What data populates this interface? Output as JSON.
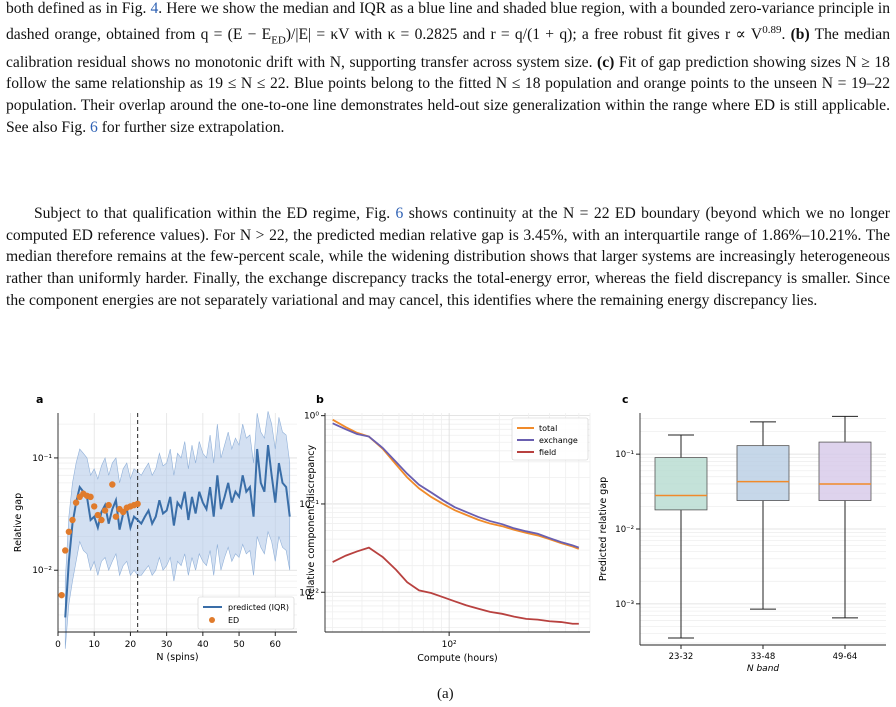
{
  "paragraphs": {
    "p1": {
      "t1": "both defined as in Fig. ",
      "fig4": "4",
      "t2": ". Here we show the median and IQR as a blue line and shaded blue region, with a bounded zero-variance principle in dashed orange, obtained from q = (E − E",
      "sub_ed": "ED",
      "t3": ")/|E| = κV with κ = 0.2825 and r = q/(1 + q); a free robust fit gives r ∝ V",
      "sup_exp": "0.89",
      "t4": ". ",
      "b_label": "(b)",
      "t5": " The median calibration residual shows no monotonic drift with N, supporting transfer across system size. ",
      "c_label": "(c)",
      "t6": " Fit of gap prediction showing sizes N ≥ 18 follow the same relationship as 19 ≤ N ≤ 22. Blue points belong to the fitted N ≤ 18 population and orange points to the unseen N = 19–22 population. Their overlap around the one-to-one line demonstrates held-out size generalization within the range where ED is still applicable. See also Fig. ",
      "fig6": "6",
      "t7": " for further size extrapolation."
    },
    "p2": {
      "t1": "Subject to that qualification within the ED regime, Fig. ",
      "fig6": "6",
      "t2": " shows continuity at the N = 22 ED boundary (beyond which we no longer computed ED reference values). For N > 22, the predicted median relative gap is 3.45%, with an interquartile range of 1.86%–10.21%. The median therefore remains at the few-percent scale, while the widening distribution shows that larger systems are increasingly heterogeneous rather than uniformly harder. Finally, the exchange discrepancy tracks the total-energy error, whereas the field discrepancy is smaller. Since the component energies are not separately variational and may cancel, this identifies where the remaining energy discrepancy lies."
    }
  },
  "panel_labels": [
    "a",
    "b",
    "c"
  ],
  "caption_label": "(a)",
  "chart_data": [
    {
      "type": "line",
      "panel": "a",
      "xlabel": "N (spins)",
      "ylabel": "Relative gap",
      "xlim": [
        0,
        66
      ],
      "ylim_log10": [
        -2.55,
        -0.6
      ],
      "yscale": "log",
      "xticks": [
        0,
        10,
        20,
        30,
        40,
        50,
        60
      ],
      "yticks": [
        "10⁻²",
        "10⁻¹"
      ],
      "vline_x": 22,
      "legend": [
        "predicted (IQR)",
        "ED"
      ],
      "legend_position": "lower-right",
      "colors": {
        "predicted": "#3a6ea8",
        "band": "#aec6e8",
        "ed": "#e07b2c"
      },
      "predicted": {
        "x": [
          2,
          3,
          4,
          5,
          6,
          7,
          8,
          9,
          10,
          11,
          12,
          13,
          14,
          15,
          16,
          17,
          18,
          19,
          20,
          21,
          22,
          23,
          24,
          25,
          26,
          27,
          28,
          29,
          30,
          31,
          32,
          33,
          34,
          35,
          36,
          37,
          38,
          39,
          40,
          41,
          42,
          43,
          44,
          45,
          46,
          47,
          48,
          49,
          50,
          51,
          52,
          53,
          54,
          55,
          56,
          57,
          58,
          59,
          60,
          61,
          62,
          63,
          64
        ],
        "median": [
          0.0038,
          0.012,
          0.026,
          0.04,
          0.055,
          0.05,
          0.045,
          0.028,
          0.03,
          0.024,
          0.033,
          0.038,
          0.026,
          0.035,
          0.042,
          0.023,
          0.032,
          0.035,
          0.024,
          0.03,
          0.028,
          0.026,
          0.03,
          0.034,
          0.026,
          0.03,
          0.042,
          0.032,
          0.034,
          0.045,
          0.025,
          0.04,
          0.036,
          0.05,
          0.028,
          0.045,
          0.032,
          0.05,
          0.04,
          0.035,
          0.055,
          0.03,
          0.07,
          0.035,
          0.045,
          0.06,
          0.04,
          0.05,
          0.045,
          0.07,
          0.05,
          0.055,
          0.03,
          0.12,
          0.06,
          0.05,
          0.13,
          0.07,
          0.04,
          0.09,
          0.06,
          0.055,
          0.03
        ],
        "q1": [
          0.002,
          0.005,
          0.008,
          0.012,
          0.018,
          0.015,
          0.014,
          0.01,
          0.012,
          0.009,
          0.012,
          0.013,
          0.01,
          0.012,
          0.014,
          0.009,
          0.011,
          0.012,
          0.009,
          0.01,
          0.009,
          0.009,
          0.01,
          0.011,
          0.009,
          0.01,
          0.013,
          0.01,
          0.011,
          0.013,
          0.008,
          0.012,
          0.011,
          0.014,
          0.009,
          0.013,
          0.01,
          0.014,
          0.012,
          0.011,
          0.015,
          0.009,
          0.017,
          0.01,
          0.013,
          0.016,
          0.012,
          0.014,
          0.013,
          0.017,
          0.014,
          0.015,
          0.009,
          0.02,
          0.016,
          0.014,
          0.022,
          0.018,
          0.012,
          0.02,
          0.016,
          0.015,
          0.01
        ],
        "q3": [
          0.008,
          0.03,
          0.06,
          0.09,
          0.12,
          0.11,
          0.1,
          0.07,
          0.08,
          0.065,
          0.085,
          0.1,
          0.07,
          0.09,
          0.1,
          0.06,
          0.08,
          0.09,
          0.065,
          0.08,
          0.075,
          0.07,
          0.08,
          0.09,
          0.07,
          0.08,
          0.11,
          0.085,
          0.09,
          0.12,
          0.07,
          0.11,
          0.1,
          0.14,
          0.08,
          0.13,
          0.09,
          0.14,
          0.11,
          0.1,
          0.16,
          0.09,
          0.2,
          0.1,
          0.13,
          0.17,
          0.12,
          0.15,
          0.13,
          0.2,
          0.15,
          0.16,
          0.09,
          0.25,
          0.17,
          0.15,
          0.26,
          0.2,
          0.12,
          0.23,
          0.17,
          0.16,
          0.09
        ]
      },
      "ed": {
        "x": [
          1,
          2,
          3,
          4,
          5,
          6,
          7,
          8,
          9,
          10,
          11,
          12,
          13,
          14,
          15,
          16,
          17,
          18,
          19,
          20,
          21,
          22
        ],
        "y": [
          0.006,
          0.015,
          0.022,
          0.028,
          0.04,
          0.045,
          0.048,
          0.046,
          0.045,
          0.037,
          0.031,
          0.028,
          0.034,
          0.038,
          0.058,
          0.03,
          0.035,
          0.033,
          0.036,
          0.037,
          0.038,
          0.039
        ]
      }
    },
    {
      "type": "line",
      "panel": "b",
      "xlabel": "Compute (hours)",
      "ylabel": "Relative component discrepancy",
      "xscale": "log",
      "yscale": "log",
      "xticks": [
        "10²"
      ],
      "yticks": [
        "10⁻²",
        "10⁻¹",
        "10⁰"
      ],
      "legend": [
        "total",
        "exchange",
        "field"
      ],
      "legend_position": "upper-right",
      "colors": {
        "total": "#f08a2a",
        "exchange": "#6a5fb0",
        "field": "#b8413f"
      },
      "x": [
        20,
        24,
        28,
        33,
        40,
        48,
        56,
        66,
        78,
        92,
        108,
        127,
        150,
        176,
        208,
        245,
        290,
        340,
        400,
        470,
        550,
        600
      ],
      "series": [
        {
          "name": "total",
          "values": [
            0.9,
            0.74,
            0.64,
            0.58,
            0.42,
            0.28,
            0.2,
            0.15,
            0.12,
            0.1,
            0.085,
            0.075,
            0.066,
            0.06,
            0.056,
            0.051,
            0.047,
            0.044,
            0.04,
            0.036,
            0.033,
            0.031
          ]
        },
        {
          "name": "exchange",
          "values": [
            0.82,
            0.7,
            0.62,
            0.58,
            0.43,
            0.3,
            0.22,
            0.165,
            0.135,
            0.11,
            0.092,
            0.081,
            0.071,
            0.064,
            0.059,
            0.053,
            0.049,
            0.046,
            0.041,
            0.037,
            0.034,
            0.032
          ]
        },
        {
          "name": "field",
          "values": [
            0.022,
            0.026,
            0.029,
            0.032,
            0.025,
            0.018,
            0.013,
            0.0105,
            0.0098,
            0.0088,
            0.0079,
            0.0071,
            0.0065,
            0.006,
            0.0057,
            0.0053,
            0.005,
            0.0049,
            0.0047,
            0.0046,
            0.0044,
            0.0044
          ]
        }
      ]
    },
    {
      "type": "box",
      "panel": "c",
      "xlabel": "N band",
      "ylabel": "Predicted relative gap",
      "yscale": "log",
      "yticks": [
        "10⁻³",
        "10⁻²",
        "10⁻¹"
      ],
      "categories": [
        "23-32",
        "33-48",
        "49-64"
      ],
      "colors": [
        "#b5dbd0",
        "#b8cde4",
        "#d6c8e8"
      ],
      "median_color": "#f08a2a",
      "boxes": [
        {
          "whisker_low": 0.00035,
          "q1": 0.018,
          "median": 0.028,
          "q3": 0.09,
          "whisker_high": 0.18
        },
        {
          "whisker_low": 0.00085,
          "q1": 0.024,
          "median": 0.043,
          "q3": 0.13,
          "whisker_high": 0.27
        },
        {
          "whisker_low": 0.00065,
          "q1": 0.024,
          "median": 0.04,
          "q3": 0.145,
          "whisker_high": 0.32
        }
      ]
    }
  ]
}
